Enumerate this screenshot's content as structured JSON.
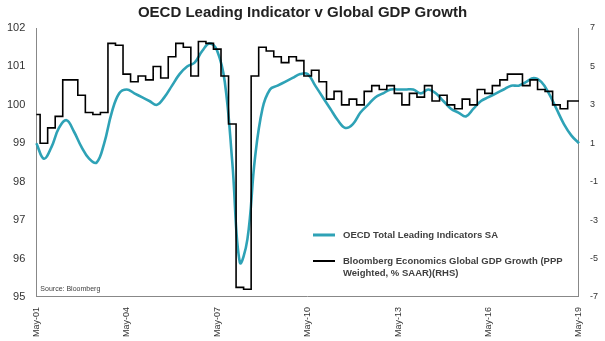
{
  "chart_data": {
    "type": "line",
    "title": "OECD Leading Indicator v Global GDP Growth",
    "source": "Source: Bloomberg",
    "categories": [
      "May-01",
      null,
      null,
      null,
      null,
      null,
      null,
      null,
      null,
      null,
      null,
      null,
      "May-04",
      null,
      null,
      null,
      null,
      null,
      null,
      null,
      null,
      null,
      null,
      null,
      "May-07",
      null,
      null,
      null,
      null,
      null,
      null,
      null,
      null,
      null,
      null,
      null,
      "May-10",
      null,
      null,
      null,
      null,
      null,
      null,
      null,
      null,
      null,
      null,
      null,
      "May-13",
      null,
      null,
      null,
      null,
      null,
      null,
      null,
      null,
      null,
      null,
      null,
      "May-16",
      null,
      null,
      null,
      null,
      null,
      null,
      null,
      null,
      null,
      null,
      null,
      "May-19"
    ],
    "series": [
      {
        "name": "OECD Total Leading Indicators SA",
        "color": "#2ea2b6",
        "line_style": "solid",
        "values": [
          99.0,
          98.6,
          98.9,
          99.4,
          99.6,
          99.3,
          98.9,
          98.6,
          98.5,
          99.0,
          99.8,
          100.3,
          100.4,
          100.3,
          100.2,
          100.1,
          100.0,
          100.2,
          100.5,
          100.8,
          101.0,
          101.1,
          101.4,
          101.6,
          101.4,
          100.6,
          98.5,
          95.9,
          96.5,
          98.6,
          99.9,
          100.4,
          100.5,
          100.6,
          100.7,
          100.8,
          100.8,
          100.5,
          100.2,
          99.9,
          99.6,
          99.4,
          99.5,
          99.8,
          100.0,
          100.2,
          100.3,
          100.4,
          100.4,
          100.4,
          100.4,
          100.3,
          100.4,
          100.3,
          100.1,
          99.9,
          99.8,
          99.7,
          99.9,
          100.1,
          100.2,
          100.3,
          100.4,
          100.5,
          100.5,
          100.6,
          100.7,
          100.6,
          100.3,
          99.9,
          99.5,
          99.2,
          99.0
        ]
      },
      {
        "name": "Bloomberg Economics Global GDP Growth (PPP Weighted, % SAAR)(RHS)",
        "color": "#000000",
        "line_style": "stepped",
        "axis": "y2",
        "values": [
          2.5,
          1.0,
          1.8,
          2.4,
          4.3,
          4.3,
          3.5,
          2.6,
          2.5,
          2.6,
          6.2,
          6.1,
          4.6,
          4.2,
          4.5,
          4.3,
          5.0,
          4.4,
          5.5,
          6.2,
          6.0,
          4.5,
          6.3,
          6.2,
          5.9,
          4.5,
          2.0,
          -6.5,
          -6.6,
          4.5,
          6.0,
          5.8,
          5.5,
          5.2,
          5.5,
          5.3,
          4.5,
          4.8,
          4.2,
          3.3,
          3.7,
          3.0,
          3.3,
          3.0,
          3.7,
          4.0,
          3.8,
          4.0,
          3.6,
          3.0,
          3.6,
          3.4,
          4.0,
          3.2,
          3.5,
          3.0,
          2.8,
          3.3,
          3.0,
          3.8,
          3.6,
          4.0,
          4.3,
          4.6,
          4.6,
          4.0,
          4.3,
          3.8,
          3.7,
          3.0,
          2.8,
          3.2,
          3.2
        ]
      }
    ],
    "ylim": [
      95,
      102
    ],
    "yticks": [
      95,
      96,
      97,
      98,
      99,
      100,
      101,
      102
    ],
    "y2lim": [
      -7,
      7
    ],
    "y2ticks": [
      -7,
      -5,
      -3,
      -1,
      1,
      3,
      5,
      7
    ],
    "grid": false,
    "legend": "lower right"
  }
}
